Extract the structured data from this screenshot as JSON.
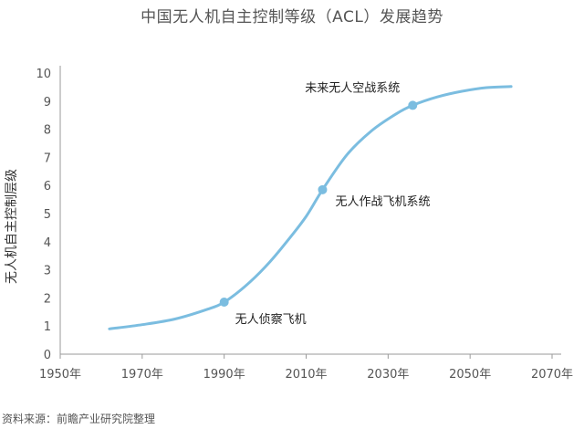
{
  "chart_data": {
    "type": "line",
    "title": "中国无人机自主控制等级（ACL）发展趋势",
    "ylabel": "无人机自主控制层级",
    "xlabel": "",
    "xlim": [
      1950,
      2070
    ],
    "ylim": [
      0,
      10
    ],
    "x_ticks": [
      "1950年",
      "1970年",
      "1990年",
      "2010年",
      "2030年",
      "2050年",
      "2070年"
    ],
    "y_ticks": [
      "0",
      "1",
      "2",
      "3",
      "4",
      "5",
      "6",
      "7",
      "8",
      "9",
      "10"
    ],
    "grid": false,
    "color": "#7bbde0",
    "series": [
      {
        "x": [
          1962,
          1970,
          1978,
          1986,
          1990,
          1995,
          2000,
          2005,
          2010,
          2014,
          2020,
          2026,
          2032,
          2036,
          2042,
          2048,
          2054,
          2060
        ],
        "values": [
          0.9,
          1.05,
          1.25,
          1.6,
          1.85,
          2.4,
          3.1,
          3.95,
          4.9,
          5.85,
          7.1,
          7.95,
          8.55,
          8.85,
          9.15,
          9.35,
          9.48,
          9.52
        ]
      }
    ],
    "annotations": [
      {
        "label": "无人侦察飞机",
        "x": 1990,
        "y": 1.85,
        "anchor": "below-right"
      },
      {
        "label": "无人作战飞机系统",
        "x": 2014,
        "y": 5.85,
        "anchor": "right"
      },
      {
        "label": "未来无人空战系统",
        "x": 2036,
        "y": 8.85,
        "anchor": "above-left"
      }
    ]
  },
  "source": "资料来源：前瞻产业研究院整理"
}
